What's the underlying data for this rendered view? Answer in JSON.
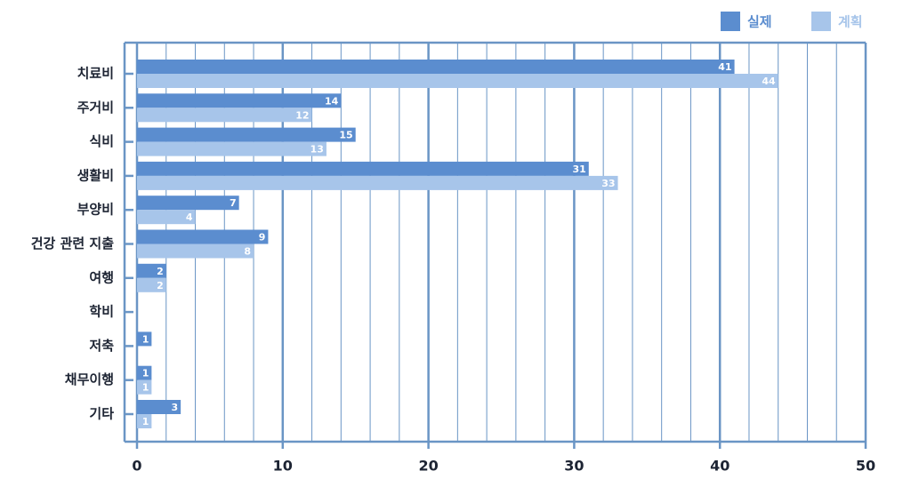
{
  "chart_data": {
    "type": "hbar",
    "categories": [
      "치료비",
      "주거비",
      "식비",
      "생활비",
      "부양비",
      "건강 관련 지출",
      "여행",
      "학비",
      "저축",
      "채무이행",
      "기타"
    ],
    "series": [
      {
        "name": "실제",
        "color": "#5b8dcf",
        "values": [
          41,
          14,
          15,
          31,
          7,
          9,
          2,
          null,
          1,
          1,
          3
        ]
      },
      {
        "name": "계획",
        "color": "#a7c5ea",
        "values": [
          44,
          12,
          13,
          33,
          4,
          8,
          2,
          null,
          null,
          1,
          1
        ]
      }
    ],
    "xlim": [
      0,
      50
    ],
    "xticks": [
      0,
      10,
      20,
      30,
      40,
      50
    ],
    "xminorticks": [
      2,
      4,
      6,
      8,
      12,
      14,
      16,
      18,
      22,
      24,
      26,
      28,
      32,
      34,
      36,
      38,
      42,
      44,
      46,
      48
    ],
    "grid": true,
    "legend": "top-right",
    "axis_color": "#6a95c5"
  }
}
